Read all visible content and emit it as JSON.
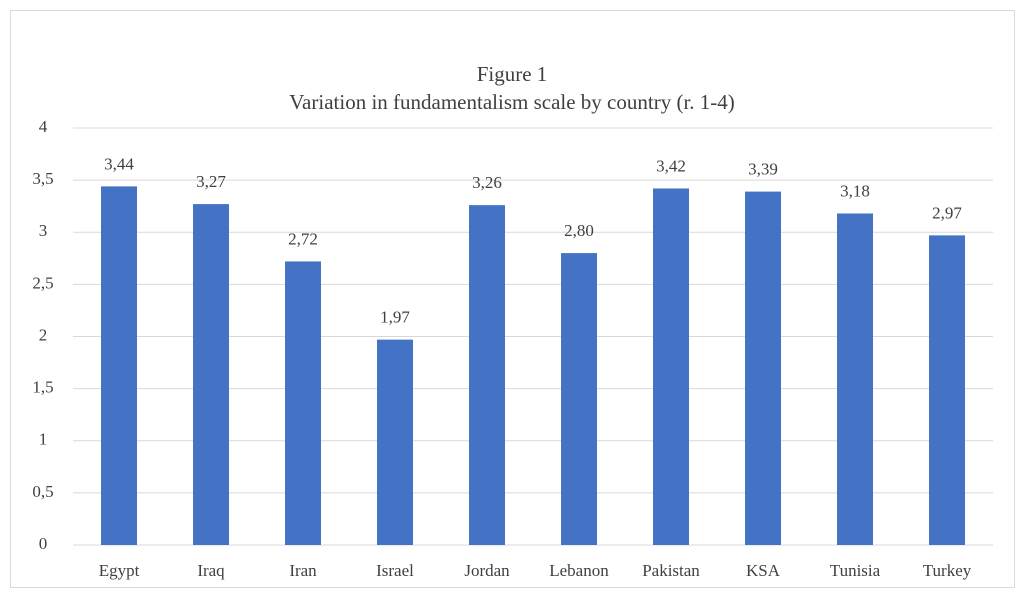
{
  "chart_data": {
    "type": "bar",
    "title": "Figure 1",
    "subtitle": "Variation in fundamentalism scale by country (r. 1-4)",
    "categories": [
      "Egypt",
      "Iraq",
      "Iran",
      "Israel",
      "Jordan",
      "Lebanon",
      "Pakistan",
      "KSA",
      "Tunisia",
      "Turkey"
    ],
    "values": [
      3.44,
      3.27,
      2.72,
      1.97,
      3.26,
      2.8,
      3.42,
      3.39,
      3.18,
      2.97
    ],
    "value_labels": [
      "3,44",
      "3,27",
      "2,72",
      "1,97",
      "3,26",
      "2,80",
      "3,42",
      "3,39",
      "3,18",
      "2,97"
    ],
    "color": "#4472c4",
    "ylim": [
      0,
      4
    ],
    "yticks": [
      0,
      {
        "value": 0.5,
        "label": "0,5"
      },
      1,
      {
        "value": 1.5,
        "label": "1,5"
      },
      2,
      {
        "value": 2.5,
        "label": "2,5"
      },
      3,
      {
        "value": 3.5,
        "label": "3,5"
      },
      4
    ],
    "grid": true
  }
}
